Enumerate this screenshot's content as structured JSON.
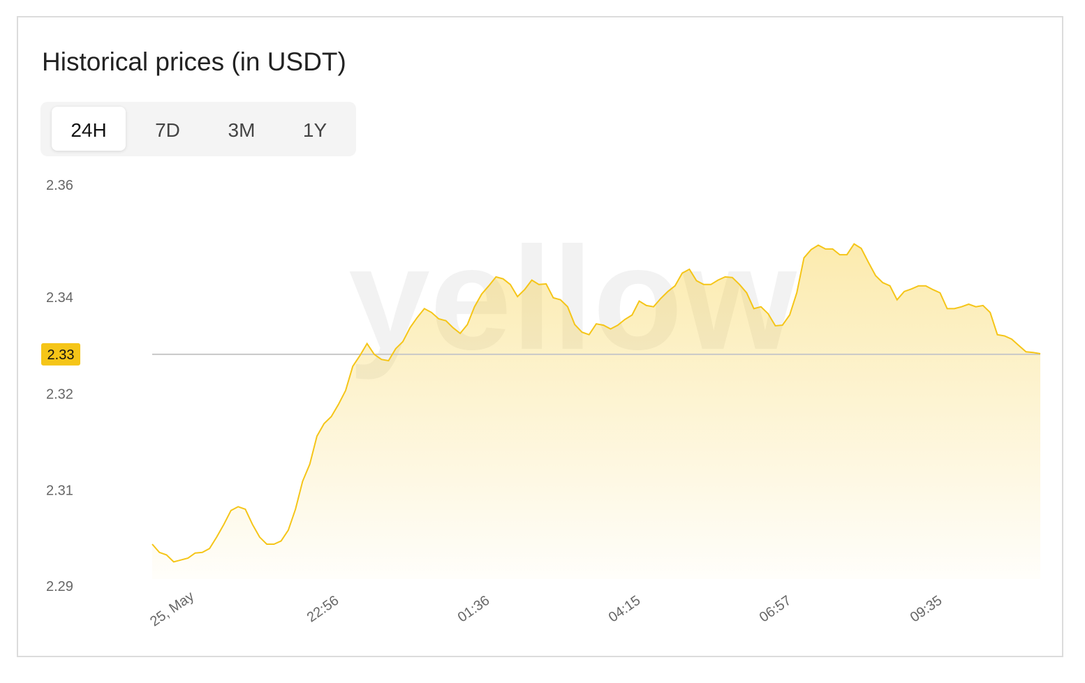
{
  "chart_data": {
    "type": "area",
    "title": "Historical prices (in USDT)",
    "tabs": [
      "24H",
      "7D",
      "3M",
      "1Y"
    ],
    "selected_tab": "24H",
    "watermark": "yellow",
    "color": "#f5c518",
    "current_price": 2.33,
    "x_labels": [
      "25, May",
      "22:56",
      "01:36",
      "04:15",
      "06:57",
      "09:35"
    ],
    "ylim": [
      2.2935,
      2.3567
    ],
    "yticks": [
      {
        "value": 2.2935,
        "label": "2.29"
      },
      {
        "value": 2.3086,
        "label": "2.31"
      },
      {
        "value": 2.3238,
        "label": "2.32"
      },
      {
        "value": 2.339,
        "label": "2.34"
      },
      {
        "value": 2.3567,
        "label": "2.36"
      }
    ],
    "values": [
      2.3001,
      2.2988,
      2.2984,
      2.2973,
      2.2976,
      2.2979,
      2.2987,
      2.2988,
      2.2994,
      2.3012,
      2.3032,
      2.3054,
      2.306,
      2.3056,
      2.3032,
      2.3012,
      2.3001,
      2.3001,
      2.3006,
      2.3023,
      2.3056,
      2.31,
      2.3127,
      2.3171,
      2.3191,
      2.3202,
      2.3221,
      2.3243,
      2.3281,
      2.3298,
      2.3317,
      2.33,
      2.3292,
      2.329,
      2.3309,
      2.332,
      2.3342,
      2.3358,
      2.3372,
      2.3366,
      2.3356,
      2.3353,
      2.3342,
      2.3333,
      2.3347,
      2.3375,
      2.3395,
      2.3408,
      2.3422,
      2.3419,
      2.341,
      2.3391,
      2.3402,
      2.3417,
      2.341,
      2.3411,
      2.3389,
      2.3386,
      2.3375,
      2.3347,
      2.3335,
      2.3331,
      2.3348,
      2.3346,
      2.334,
      2.3346,
      2.3355,
      2.3362,
      2.3384,
      2.3377,
      2.3375,
      2.3388,
      2.3399,
      2.3408,
      2.3428,
      2.3434,
      2.3416,
      2.341,
      2.341,
      2.3417,
      2.3422,
      2.3421,
      2.341,
      2.3397,
      2.3372,
      2.3375,
      2.3364,
      2.3345,
      2.3346,
      2.3362,
      2.3397,
      2.3452,
      2.3465,
      2.3472,
      2.3466,
      2.3466,
      2.3457,
      2.3457,
      2.3474,
      2.3467,
      2.3445,
      2.3424,
      2.3413,
      2.3408,
      2.3386,
      2.3399,
      2.3403,
      2.3408,
      2.3408,
      2.3402,
      2.3397,
      2.3372,
      2.3372,
      2.3375,
      2.3379,
      2.3375,
      2.3377,
      2.3366,
      2.3331,
      2.3329,
      2.3324,
      2.3314,
      2.3304,
      2.3303,
      2.3301
    ]
  }
}
